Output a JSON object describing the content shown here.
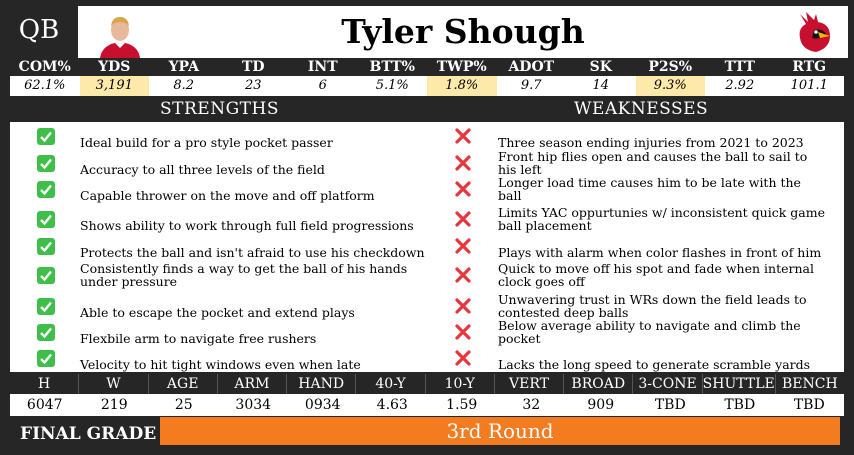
{
  "header": {
    "position": "QB",
    "player_name": "Tyler Shough"
  },
  "stats": {
    "headers": [
      "COM%",
      "YDS",
      "YPA",
      "TD",
      "INT",
      "BTT%",
      "TWP%",
      "ADOT",
      "SK",
      "P2S%",
      "TTT",
      "RTG"
    ],
    "values": [
      "62.1%",
      "3,191",
      "8.2",
      "23",
      "6",
      "5.1%",
      "1.8%",
      "9.7",
      "14",
      "9.3%",
      "2.92",
      "101.1"
    ]
  },
  "sections": {
    "strengths_title": "STRENGTHS",
    "weaknesses_title": "WEAKNESSES"
  },
  "strengths": [
    "Ideal build for a pro style pocket passer",
    "Accuracy to all three levels of the field",
    "Capable thrower on the move and off platform",
    "Shows ability to work through full field progressions",
    "Protects the ball and isn't afraid to use his checkdown",
    "Consistently finds a way to get the ball of his hands under pressure",
    "Able to escape the pocket and extend plays",
    "Flexbile arm to navigate free rushers",
    "Velocity to hit tight windows even when late"
  ],
  "weaknesses": [
    "Three season ending injuries from 2021 to 2023",
    "Front hip flies open and causes the ball to sail to his left",
    "Longer load time causes him to be late with the ball",
    "Limits YAC oppurtunies w/ inconsistent quick game ball placement",
    "Plays with alarm when color flashes in front of him",
    "Quick to move off his spot and fade when internal clock goes off",
    "Unwavering trust in WRs down the field leads to contested deep balls",
    "Below average ability to navigate and climb the pocket",
    "Lacks the long speed to generate scramble yards"
  ],
  "measurables": {
    "headers": [
      "H",
      "W",
      "AGE",
      "ARM",
      "HAND",
      "40-Y",
      "10-Y",
      "VERT",
      "BROAD",
      "3-CONE",
      "SHUTTLE",
      "BENCH"
    ],
    "values": [
      "6047",
      "219",
      "25",
      "3034",
      "0934",
      "4.63",
      "1.59",
      "32",
      "909",
      "TBD",
      "TBD",
      "TBD"
    ]
  },
  "grade": {
    "label": "FINAL GRADE",
    "value": "3rd Round"
  },
  "colors": {
    "background": "#262626",
    "highlight": "#fde9a9",
    "check": "#3fbf4a",
    "cross": "#e8363c",
    "grade": "#f47c20"
  }
}
